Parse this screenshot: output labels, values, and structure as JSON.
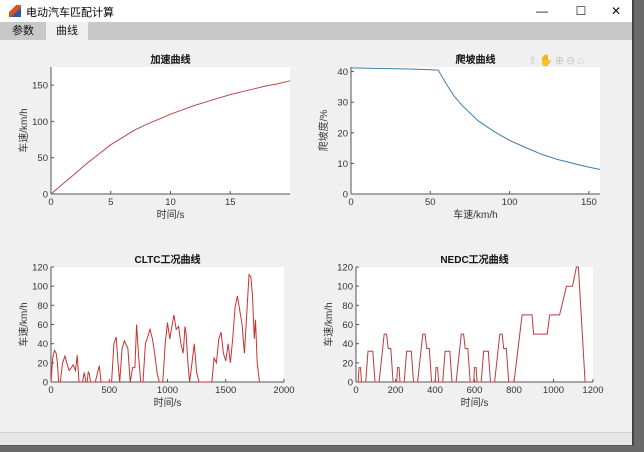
{
  "window": {
    "title": "电动汽车匹配计算",
    "controls": {
      "minimize": "—",
      "maximize": "☐",
      "close": "✕"
    }
  },
  "tabs": [
    {
      "label": "参数",
      "active": false
    },
    {
      "label": "曲线",
      "active": true
    }
  ],
  "axes_toolbar": {
    "icons": [
      "export-icon",
      "pan-icon",
      "zoom-in-icon",
      "zoom-out-icon",
      "home-icon"
    ],
    "glyphs": "⇪✋⊕⊖⌂"
  },
  "chart_data": [
    {
      "type": "line",
      "title": "加速曲线",
      "xlabel": "时间/s",
      "ylabel": "车速/km/h",
      "xlim": [
        0,
        20
      ],
      "ylim": [
        0,
        175
      ],
      "xticks": [
        0,
        5,
        10,
        15
      ],
      "yticks": [
        0,
        50,
        100,
        150
      ],
      "color": "#b5484a",
      "x": [
        0,
        1,
        2,
        3,
        4,
        5,
        6,
        7,
        8,
        9,
        10,
        11,
        12,
        13,
        14,
        15,
        16,
        17,
        18,
        19,
        20
      ],
      "y": [
        0,
        14,
        28,
        42,
        55,
        68,
        78,
        88,
        96,
        103,
        110,
        116,
        122,
        127,
        132,
        137,
        141,
        145,
        149,
        152,
        156
      ]
    },
    {
      "type": "line",
      "title": "爬坡曲线",
      "xlabel": "车速/km/h",
      "ylabel": "爬坡度/%",
      "xlim": [
        0,
        157
      ],
      "ylim": [
        0,
        41.5
      ],
      "xticks": [
        0,
        50,
        100,
        150
      ],
      "yticks": [
        0,
        10,
        20,
        30,
        40
      ],
      "color": "#3b7ea6",
      "x": [
        0,
        20,
        40,
        55,
        60,
        65,
        70,
        80,
        90,
        100,
        110,
        120,
        130,
        140,
        150,
        157
      ],
      "y": [
        41.2,
        41,
        40.8,
        40.5,
        36,
        32,
        29,
        24,
        20.5,
        17.5,
        15.2,
        13,
        11.3,
        10,
        8.8,
        8
      ]
    },
    {
      "type": "line",
      "title": "CLTC工况曲线",
      "xlabel": "时间/s",
      "ylabel": "车速/km/h",
      "xlim": [
        0,
        2000
      ],
      "ylim": [
        0,
        120
      ],
      "xticks": [
        0,
        500,
        1000,
        1500,
        2000
      ],
      "yticks": [
        0,
        20,
        40,
        60,
        80,
        100,
        120
      ],
      "color": "#c83232",
      "x": [
        0,
        15,
        30,
        45,
        55,
        65,
        80,
        100,
        120,
        140,
        155,
        170,
        190,
        210,
        225,
        240,
        255,
        270,
        285,
        300,
        310,
        320,
        330,
        340,
        350,
        360,
        380,
        400,
        415,
        430,
        500,
        520,
        540,
        560,
        575,
        590,
        610,
        630,
        660,
        680,
        700,
        720,
        735,
        750,
        770,
        790,
        810,
        830,
        850,
        870,
        890,
        910,
        930,
        960,
        980,
        1000,
        1020,
        1040,
        1055,
        1075,
        1095,
        1115,
        1135,
        1150,
        1160,
        1175,
        1190,
        1210,
        1230,
        1250,
        1270,
        1285,
        1295,
        1310,
        1330,
        1380,
        1400,
        1420,
        1440,
        1460,
        1480,
        1500,
        1520,
        1540,
        1560,
        1580,
        1600,
        1620,
        1640,
        1660,
        1680,
        1700,
        1715,
        1730,
        1745,
        1755,
        1770,
        1790,
        1800
      ],
      "y": [
        0,
        25,
        33,
        30,
        20,
        0,
        0,
        20,
        27,
        18,
        12,
        14,
        18,
        12,
        28,
        0,
        0,
        0,
        10,
        0,
        0,
        11,
        8,
        0,
        0,
        0,
        0,
        10,
        17,
        0,
        0,
        0,
        40,
        47,
        20,
        0,
        35,
        43,
        35,
        0,
        15,
        15,
        60,
        30,
        0,
        0,
        40,
        47,
        55,
        45,
        30,
        10,
        0,
        0,
        40,
        62,
        45,
        60,
        70,
        55,
        58,
        40,
        30,
        58,
        50,
        20,
        0,
        20,
        40,
        10,
        0,
        0,
        0,
        0,
        0,
        0,
        25,
        20,
        45,
        52,
        30,
        22,
        40,
        20,
        45,
        78,
        90,
        75,
        60,
        30,
        70,
        112,
        110,
        90,
        45,
        65,
        20,
        0,
        0
      ]
    },
    {
      "type": "line",
      "title": "NEDC工况曲线",
      "xlabel": "时间/s",
      "ylabel": "车速/km/h",
      "xlim": [
        0,
        1200
      ],
      "ylim": [
        0,
        120
      ],
      "xticks": [
        0,
        200,
        400,
        600,
        800,
        1000,
        1200
      ],
      "yticks": [
        0,
        20,
        40,
        60,
        80,
        100,
        120
      ],
      "color": "#c0393b",
      "x": [
        0,
        11,
        15,
        23,
        28,
        49,
        61,
        85,
        96,
        117,
        143,
        155,
        163,
        176,
        188,
        206,
        210,
        218,
        223,
        244,
        256,
        280,
        291,
        312,
        338,
        350,
        358,
        371,
        383,
        401,
        405,
        413,
        418,
        439,
        451,
        475,
        486,
        507,
        533,
        545,
        553,
        566,
        578,
        596,
        600,
        608,
        613,
        634,
        646,
        670,
        681,
        702,
        728,
        740,
        748,
        761,
        773,
        800,
        841,
        891,
        899,
        968,
        981,
        1031,
        1066,
        1096,
        1116,
        1126,
        1160,
        1180
      ],
      "y": [
        0,
        0,
        15,
        15,
        0,
        0,
        32,
        32,
        0,
        0,
        50,
        50,
        35,
        35,
        0,
        0,
        15,
        15,
        0,
        0,
        32,
        32,
        0,
        0,
        50,
        50,
        35,
        35,
        0,
        0,
        15,
        15,
        0,
        0,
        32,
        32,
        0,
        0,
        50,
        50,
        35,
        35,
        0,
        0,
        15,
        15,
        0,
        0,
        32,
        32,
        0,
        0,
        50,
        50,
        35,
        35,
        0,
        0,
        70,
        70,
        50,
        50,
        70,
        70,
        100,
        100,
        120,
        120,
        0,
        0
      ]
    }
  ]
}
